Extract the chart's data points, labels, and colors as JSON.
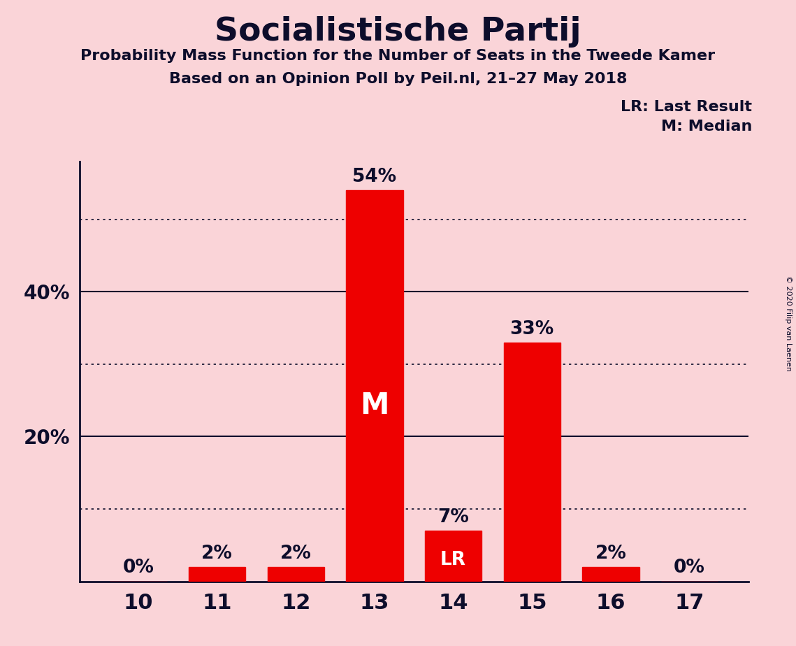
{
  "title": "Socialistische Partij",
  "subtitle1": "Probability Mass Function for the Number of Seats in the Tweede Kamer",
  "subtitle2": "Based on an Opinion Poll by Peil.nl, 21–27 May 2018",
  "copyright": "© 2020 Filip van Laenen",
  "categories": [
    10,
    11,
    12,
    13,
    14,
    15,
    16,
    17
  ],
  "values": [
    0,
    2,
    2,
    54,
    7,
    33,
    2,
    0
  ],
  "bar_color": "#EE0000",
  "background_color": "#FAD4D8",
  "text_color": "#0D0D2B",
  "median_idx": 3,
  "lr_idx": 4,
  "legend_text1": "LR: Last Result",
  "legend_text2": "M: Median",
  "ylabel_ticks": [
    20,
    40
  ],
  "ylabel_labels": [
    "20%",
    "40%"
  ],
  "solid_gridlines": [
    20,
    40
  ],
  "dotted_gridlines": [
    10,
    30,
    50
  ],
  "ylim": [
    0,
    58
  ]
}
